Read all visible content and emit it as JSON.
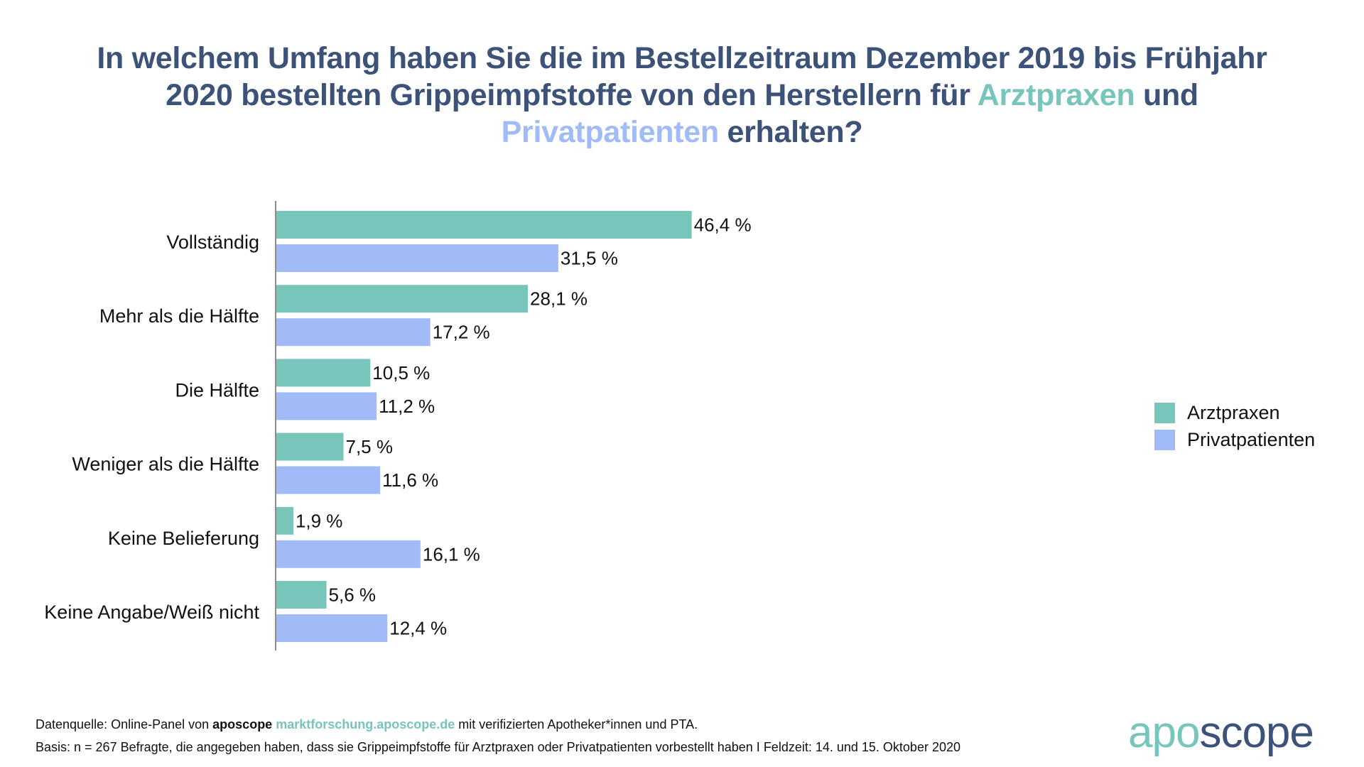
{
  "title": {
    "line1": "In welchem Umfang haben Sie die im Bestellzeitraum Dezember 2019 bis Frühjahr",
    "line2_pre": "2020 bestellten Grippeimpfstoffe von den Herstellern für ",
    "line2_highlight": "Arztpraxen",
    "line2_post": " und",
    "line3_highlight": "Privatpatienten",
    "line3_post": " erhalten?"
  },
  "colors": {
    "title": "#3d5278",
    "arztpraxen": "#78c5bb",
    "privatpatienten": "#a0bbf7",
    "axis": "#666666",
    "text": "#111111"
  },
  "chart_data": {
    "type": "bar",
    "orientation": "horizontal",
    "title": "In welchem Umfang haben Sie die im Bestellzeitraum Dezember 2019 bis Frühjahr 2020 bestellten Grippeimpfstoffe von den Herstellern für Arztpraxen und Privatpatienten erhalten?",
    "xlabel": "",
    "ylabel": "",
    "unit": "%",
    "xlim": [
      0,
      100
    ],
    "grid": false,
    "legend_position": "right",
    "categories": [
      "Vollständig",
      "Mehr als die Hälfte",
      "Die Hälfte",
      "Weniger als die Hälfte",
      "Keine Belieferung",
      "Keine Angabe/Weiß nicht"
    ],
    "series": [
      {
        "name": "Arztpraxen",
        "color": "#78c5bb",
        "values": [
          46.4,
          28.1,
          10.5,
          7.5,
          1.9,
          5.6
        ],
        "labels": [
          "46,4 %",
          "28,1 %",
          "10,5 %",
          "7,5 %",
          "1,9 %",
          "5,6 %"
        ]
      },
      {
        "name": "Privatpatienten",
        "color": "#a0bbf7",
        "values": [
          31.5,
          17.2,
          11.2,
          11.6,
          16.1,
          12.4
        ],
        "labels": [
          "31,5 %",
          "17,2 %",
          "11,2 %",
          "11,6 %",
          "16,1 %",
          "12,4 %"
        ]
      }
    ]
  },
  "legend": {
    "items": [
      {
        "label": "Arztpraxen"
      },
      {
        "label": "Privatpatienten"
      }
    ]
  },
  "footer": {
    "line1_pre": "Datenquelle: Online-Panel von ",
    "line1_brand": "aposcope",
    "line1_link": "marktforschung.aposcope.de",
    "line1_post": " mit verifizierten Apotheker*innen und PTA.",
    "line2": "Basis: n = 267 Befragte, die angegeben haben, dass sie Grippeimpfstoffe für Arztpraxen oder Privatpatienten vorbestellt haben I Feldzeit: 14. und 15. Oktober 2020"
  },
  "logo": {
    "part1": "apo",
    "part2": "scope"
  }
}
